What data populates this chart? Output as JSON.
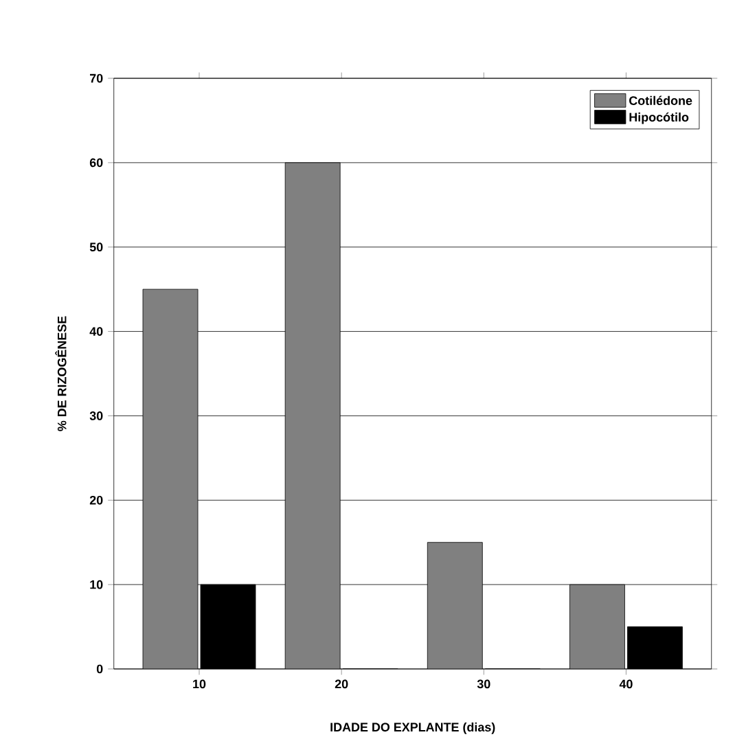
{
  "chart_data": {
    "type": "bar",
    "xlabel": "IDADE DO EXPLANTE (dias)",
    "ylabel": "% DE RIZOGÊNESE",
    "categories": [
      "10",
      "20",
      "30",
      "40"
    ],
    "series": [
      {
        "name": "Cotilédone",
        "color": "#808080",
        "values": [
          45,
          60,
          15,
          10
        ]
      },
      {
        "name": "Hipocótilo",
        "color": "#000000",
        "values": [
          10,
          0,
          0,
          5
        ]
      }
    ],
    "ylim": [
      0,
      70
    ],
    "yticks": [
      0,
      10,
      20,
      30,
      40,
      50,
      60,
      70
    ],
    "grid": "y",
    "legend": "top right"
  }
}
